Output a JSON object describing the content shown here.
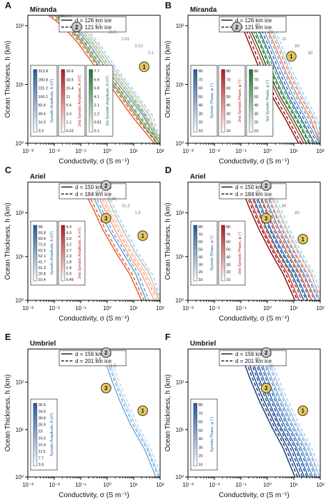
{
  "figure": {
    "background": "#ffffff"
  },
  "chart_data": [
    {
      "panel_letter": "A",
      "title": "Miranda",
      "type": "line",
      "xlabel": "Conductivity, σ (S m⁻¹)",
      "ylabel": "Ocean Thickness, h (km)",
      "xscale": "log",
      "yscale": "log",
      "xlim": [
        0.001,
        100
      ],
      "ylim": [
        1,
        150
      ],
      "xticks": [
        "10⁻³",
        "10⁻²",
        "10⁻¹",
        "10⁰",
        "10¹",
        "10²"
      ],
      "yticks": [
        "10⁰",
        "10¹",
        "10²"
      ],
      "legend": [
        {
          "label": "d = 126 km ice",
          "style": "solid"
        },
        {
          "label": "d = 121 km ice",
          "style": "dashed"
        }
      ],
      "markers": [
        {
          "label": "2",
          "x": 0.07,
          "y": 95
        },
        {
          "label": "1",
          "x": 25,
          "y": 20
        }
      ],
      "colorbars": [
        {
          "label": "Synodic Amplitude, A (nT)",
          "color": "#1f5ea8",
          "ticks": [
            "313.8",
            "280.8",
            "231.2",
            "165.2",
            "82.6",
            "49.6",
            "16.5",
            "3.3"
          ]
        },
        {
          "label": "2nd Synodic Amplitude, A (nT)",
          "color": "#b7191c",
          "ticks": [
            "20.6",
            "18.5",
            "15.4",
            "11",
            "5.4",
            "3.3",
            "1.1",
            "0.22"
          ]
        },
        {
          "label": "3rd Synodic Amplitude, A (nT)",
          "color": "#1b7a2e",
          "ticks": [
            "7.7",
            "6.9",
            "5.8",
            "4.1",
            "2.1",
            "1.2",
            "0.81",
            "0.1"
          ]
        }
      ],
      "annotations": [
        "3.3",
        "16.5",
        "0.81",
        "0.22",
        "2.2"
      ],
      "series": [
        {
          "color": "#5b9bd5",
          "x": [
            0.016,
            0.05,
            0.2,
            0.8,
            4,
            22,
            95
          ]
        },
        {
          "color": "#9ccbe6",
          "x": [
            0.03,
            0.1,
            0.4,
            1.6,
            8,
            40,
            95
          ]
        },
        {
          "color": "#e0552a",
          "x": [
            0.006,
            0.02,
            0.08,
            0.35,
            1.7,
            8,
            60
          ]
        },
        {
          "color": "#f0a07a",
          "x": [
            0.01,
            0.035,
            0.14,
            0.6,
            3,
            14,
            95
          ]
        },
        {
          "color": "#f6c8a8",
          "x": [
            0.025,
            0.08,
            0.3,
            1.2,
            6,
            30,
            95
          ]
        },
        {
          "color": "#3f9b4f",
          "x": [
            0.01,
            0.03,
            0.12,
            0.5,
            2.5,
            12,
            80
          ]
        },
        {
          "color": "#8ccb8e",
          "x": [
            0.018,
            0.06,
            0.25,
            1,
            5,
            25,
            95
          ]
        }
      ],
      "y_points": [
        150,
        100,
        50,
        20,
        8,
        3,
        1
      ]
    },
    {
      "panel_letter": "B",
      "title": "Miranda",
      "type": "line",
      "xlabel": "Conductivity, σ (S m⁻¹)",
      "ylabel": "Ocean Thickness, h (km)",
      "xscale": "log",
      "yscale": "log",
      "xlim": [
        0.001,
        100
      ],
      "ylim": [
        1,
        150
      ],
      "xticks": [
        "10⁻³",
        "10⁻²",
        "10⁻¹",
        "10⁰",
        "10¹",
        "10²"
      ],
      "yticks": [
        "10⁰",
        "10¹",
        "10²"
      ],
      "legend": [
        {
          "label": "d = 126 km ice",
          "style": "solid"
        },
        {
          "label": "d = 121 km ice",
          "style": "dashed"
        }
      ],
      "markers": [
        {
          "label": "2",
          "x": 0.07,
          "y": 95
        },
        {
          "label": "1",
          "x": 8,
          "y": 30
        }
      ],
      "colorbars": [
        {
          "label": "Synodic Phase, φ (°)",
          "color": "#1f5ea8",
          "ticks": [
            "80",
            "70",
            "60",
            "50",
            "40",
            "30",
            "20",
            "10"
          ]
        },
        {
          "label": "2nd Synodic Phase, φ (°)",
          "color": "#b7191c",
          "ticks": [
            "80",
            "70",
            "60",
            "50",
            "40",
            "30",
            "20",
            "10"
          ]
        },
        {
          "label": "3rd Synodic Phase, φ (°)",
          "color": "#1b7a2e",
          "ticks": [
            "80",
            "70",
            "60",
            "50",
            "40",
            "30",
            "20",
            "10"
          ]
        }
      ],
      "annotations": [
        "80",
        "20",
        "10",
        "80",
        "80"
      ],
      "series": [
        {
          "color": "#8b0000",
          "x": [
            0.08,
            0.12,
            0.25,
            0.6,
            1.6,
            5,
            15
          ]
        },
        {
          "color": "#c0392b",
          "x": [
            0.12,
            0.18,
            0.4,
            1,
            2.6,
            8,
            24
          ]
        },
        {
          "color": "#1e6b33",
          "x": [
            0.14,
            0.22,
            0.5,
            1.2,
            3.2,
            10,
            30
          ]
        },
        {
          "color": "#3d9a4f",
          "x": [
            0.2,
            0.32,
            0.7,
            1.7,
            4.5,
            14,
            42
          ]
        },
        {
          "color": "#2e5fa8",
          "x": [
            0.3,
            0.45,
            1,
            2.5,
            6.5,
            20,
            60
          ]
        },
        {
          "color": "#6c9fd4",
          "x": [
            0.45,
            0.7,
            1.5,
            3.8,
            10,
            30,
            90
          ]
        },
        {
          "color": "#e77b50",
          "x": [
            0.65,
            1,
            2.2,
            5.5,
            15,
            45,
            95
          ]
        },
        {
          "color": "#9ccbe6",
          "x": [
            1,
            1.5,
            3.2,
            8,
            22,
            65,
            95
          ]
        }
      ],
      "y_points": [
        120,
        90,
        40,
        15,
        6,
        2.5,
        1
      ]
    },
    {
      "panel_letter": "C",
      "title": "Ariel",
      "type": "line",
      "xlabel": "Conductivity, σ (S m⁻¹)",
      "ylabel": "Ocean Thickness, h (km)",
      "xscale": "log",
      "yscale": "log",
      "xlim": [
        0.001,
        100
      ],
      "ylim": [
        1,
        500
      ],
      "xticks": [
        "10⁻³",
        "10⁻²",
        "10⁻¹",
        "10⁰",
        "10¹",
        "10²"
      ],
      "yticks": [
        "10⁰",
        "10¹",
        "10²"
      ],
      "legend": [
        {
          "label": "d = 150 km ice",
          "style": "solid"
        },
        {
          "label": "d = 184 km ice",
          "style": "dashed"
        }
      ],
      "markers": [
        {
          "label": "2",
          "x": 0.9,
          "y": 420
        },
        {
          "label": "3",
          "x": 0.9,
          "y": 75
        },
        {
          "label": "1",
          "x": 22,
          "y": 30
        }
      ],
      "colorbars": [
        {
          "label": "Synodic Amplitude, A (nT)",
          "color": "#1f5ea8",
          "ticks": [
            "99",
            "93.8",
            "83.4",
            "72.9",
            "62.5",
            "52.1",
            "41.7",
            "31.3",
            "20.8",
            "10.4"
          ]
        },
        {
          "label": "2nd Synodic Amplitude, A (nT)",
          "color": "#b7191c",
          "ticks": [
            "4.3",
            "4.0",
            "3.6",
            "3.2",
            "2.7",
            "2.3",
            "1.8",
            "1.4",
            "0.9",
            "0.45"
          ]
        }
      ],
      "annotations": [
        "10.4",
        "0.45",
        "31.3",
        "1.8"
      ],
      "series": [
        {
          "color": "#5b9bd5",
          "x": [
            0.2,
            0.25,
            0.5,
            1.2,
            4,
            12,
            30
          ]
        },
        {
          "color": "#9ccbe6",
          "x": [
            0.6,
            0.8,
            1.6,
            4,
            12,
            40,
            95
          ]
        },
        {
          "color": "#e0552a",
          "x": [
            0.1,
            0.14,
            0.3,
            0.7,
            2.2,
            7,
            20
          ]
        },
        {
          "color": "#f0a07a",
          "x": [
            0.3,
            0.4,
            0.8,
            2,
            6,
            20,
            60
          ]
        },
        {
          "color": "#f6c8a8",
          "x": [
            0.45,
            0.6,
            1.2,
            3,
            9,
            30,
            90
          ]
        }
      ],
      "y_points": [
        450,
        300,
        120,
        40,
        12,
        4,
        1
      ]
    },
    {
      "panel_letter": "D",
      "title": "Ariel",
      "type": "line",
      "xlabel": "Conductivity, σ (S m⁻¹)",
      "ylabel": "Ocean Thickness, h (km)",
      "xscale": "log",
      "yscale": "log",
      "xlim": [
        0.001,
        100
      ],
      "ylim": [
        1,
        500
      ],
      "xticks": [
        "10⁻³",
        "10⁻²",
        "10⁻¹",
        "10⁰",
        "10¹",
        "10²"
      ],
      "yticks": [
        "10⁰",
        "10¹",
        "10²"
      ],
      "legend": [
        {
          "label": "d = 150 km ice",
          "style": "solid"
        },
        {
          "label": "d = 184 km ice",
          "style": "dashed"
        }
      ],
      "markers": [
        {
          "label": "2",
          "x": 0.9,
          "y": 420
        },
        {
          "label": "3",
          "x": 0.9,
          "y": 75
        },
        {
          "label": "1",
          "x": 22,
          "y": 25
        }
      ],
      "colorbars": [
        {
          "label": "Synodic Phase, φ (°)",
          "color": "#1f5ea8",
          "ticks": [
            "80",
            "70",
            "60",
            "50",
            "40",
            "30",
            "20",
            "10"
          ]
        },
        {
          "label": "2nd Synodic Phase, φ (°)",
          "color": "#b7191c",
          "ticks": [
            "80",
            "70",
            "60",
            "50",
            "40",
            "30",
            "20",
            "10"
          ]
        }
      ],
      "annotations": [
        "10",
        "10",
        "80",
        "80"
      ],
      "series": [
        {
          "color": "#8b0000",
          "x": [
            0.1,
            0.12,
            0.22,
            0.5,
            1.4,
            4,
            11
          ]
        },
        {
          "color": "#c0392b",
          "x": [
            0.14,
            0.17,
            0.32,
            0.7,
            2,
            6,
            16
          ]
        },
        {
          "color": "#1f4e8c",
          "x": [
            0.2,
            0.24,
            0.45,
            1,
            2.8,
            8.5,
            24
          ]
        },
        {
          "color": "#2e64b0",
          "x": [
            0.28,
            0.34,
            0.65,
            1.4,
            4,
            12,
            34
          ]
        },
        {
          "color": "#e0552a",
          "x": [
            0.4,
            0.48,
            0.9,
            2,
            5.8,
            17,
            48
          ]
        },
        {
          "color": "#4f86c6",
          "x": [
            0.55,
            0.68,
            1.3,
            2.9,
            8.2,
            24,
            68
          ]
        },
        {
          "color": "#f0a07a",
          "x": [
            0.8,
            0.95,
            1.8,
            4.1,
            11.5,
            34,
            95
          ]
        },
        {
          "color": "#9ccbe6",
          "x": [
            1.1,
            1.35,
            2.6,
            5.8,
            16,
            48,
            95
          ]
        }
      ],
      "y_points": [
        450,
        300,
        120,
        40,
        12,
        4,
        1
      ]
    },
    {
      "panel_letter": "E",
      "title": "Umbriel",
      "type": "line",
      "xlabel": "Conductivity, σ (S m⁻¹)",
      "ylabel": "Ocean Thickness, h (km)",
      "xscale": "log",
      "yscale": "log",
      "xlim": [
        0.001,
        100
      ],
      "ylim": [
        1,
        500
      ],
      "xticks": [
        "10⁻³",
        "10⁻²",
        "10⁻¹",
        "10⁰",
        "10¹",
        "10²"
      ],
      "yticks": [
        "10⁰",
        "10¹",
        "10²"
      ],
      "legend": [
        {
          "label": "d = 156 km ice",
          "style": "solid"
        },
        {
          "label": "d = 201 km ice",
          "style": "dashed"
        }
      ],
      "markers": [
        {
          "label": "2",
          "x": 0.9,
          "y": 420
        },
        {
          "label": "3",
          "x": 0.9,
          "y": 75
        },
        {
          "label": "1",
          "x": 22,
          "y": 25
        }
      ],
      "colorbars": [
        {
          "label": "Synodic Amplitude, A (nT)",
          "color": "#1f5ea8",
          "ticks": [
            "36.6",
            "34.6",
            "30.8",
            "26.9",
            "23",
            "19.2",
            "15.4",
            "11.5",
            "7.7",
            "3.9"
          ]
        }
      ],
      "annotations": [
        "3.9",
        "11.5"
      ],
      "series": [
        {
          "color": "#6ea6d8",
          "x": [
            0.7,
            0.8,
            1.4,
            3,
            8,
            25,
            70
          ]
        },
        {
          "color": "#b4d6ee",
          "x": [
            1,
            1.2,
            2,
            4.5,
            12,
            35,
            95
          ]
        }
      ],
      "y_points": [
        450,
        300,
        120,
        40,
        12,
        4,
        1
      ]
    },
    {
      "panel_letter": "F",
      "title": "Umbriel",
      "type": "line",
      "xlabel": "Conductivity, σ (S m⁻¹)",
      "ylabel": "Ocean Thickness, h (km)",
      "xscale": "log",
      "yscale": "log",
      "xlim": [
        0.001,
        100
      ],
      "ylim": [
        1,
        500
      ],
      "xticks": [
        "10⁻³",
        "10⁻²",
        "10⁻¹",
        "10⁰",
        "10¹",
        "10²"
      ],
      "yticks": [
        "10⁰",
        "10¹",
        "10²"
      ],
      "legend": [
        {
          "label": "d = 156 km ice",
          "style": "solid"
        },
        {
          "label": "d = 201 km ice",
          "style": "dashed"
        }
      ],
      "markers": [
        {
          "label": "2",
          "x": 0.9,
          "y": 420
        },
        {
          "label": "3",
          "x": 0.9,
          "y": 75
        },
        {
          "label": "1",
          "x": 22,
          "y": 25
        }
      ],
      "colorbars": [
        {
          "label": "Synodic Phase, φ (°)",
          "color": "#1f5ea8",
          "ticks": [
            "80",
            "70",
            "60",
            "50",
            "40",
            "30",
            "20",
            "10"
          ]
        }
      ],
      "annotations": [
        "80",
        "10"
      ],
      "series": [
        {
          "color": "#0b2f6b",
          "x": [
            0.1,
            0.12,
            0.22,
            0.5,
            1.4,
            4,
            11
          ]
        },
        {
          "color": "#163f85",
          "x": [
            0.15,
            0.18,
            0.33,
            0.75,
            2.1,
            6,
            17
          ]
        },
        {
          "color": "#1f4e9c",
          "x": [
            0.22,
            0.26,
            0.48,
            1.1,
            3,
            9,
            25
          ]
        },
        {
          "color": "#2e64b0",
          "x": [
            0.32,
            0.38,
            0.7,
            1.6,
            4.5,
            13,
            36
          ]
        },
        {
          "color": "#4f86c6",
          "x": [
            0.46,
            0.55,
            1,
            2.3,
            6.5,
            19,
            52
          ]
        },
        {
          "color": "#7aa8d8",
          "x": [
            0.66,
            0.8,
            1.45,
            3.3,
            9.4,
            27,
            75
          ]
        },
        {
          "color": "#a8cbe8",
          "x": [
            0.95,
            1.15,
            2.1,
            4.8,
            13.5,
            39,
            95
          ]
        }
      ],
      "y_points": [
        450,
        300,
        120,
        40,
        12,
        4,
        1
      ]
    }
  ]
}
